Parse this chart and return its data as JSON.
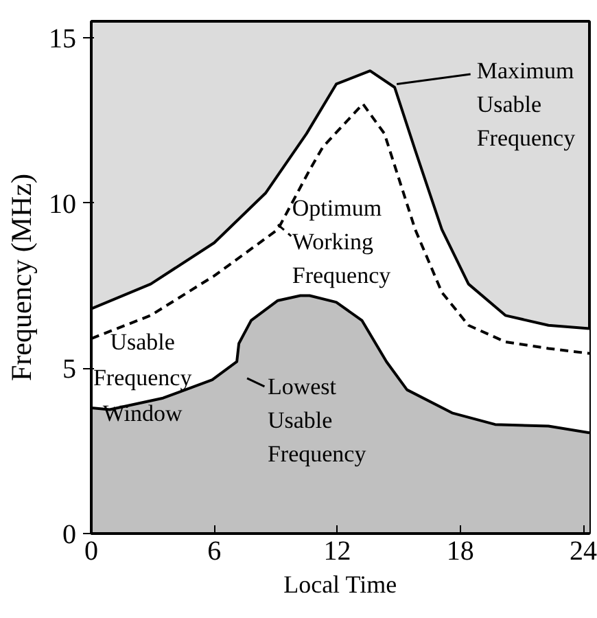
{
  "chart_data": {
    "type": "line",
    "xlabel": "Local Time",
    "ylabel": "Frequency (MHz)",
    "xlim": [
      0,
      24.3
    ],
    "ylim": [
      0,
      15.5
    ],
    "xticks": [
      0,
      6,
      12,
      18,
      24
    ],
    "yticks": [
      0,
      5,
      10,
      15
    ],
    "grid": false,
    "legend": "right",
    "marker": "none",
    "series": [
      {
        "name": "Maximum Usable Frequency",
        "type": "area",
        "color": "#ffffff",
        "line_style": "solid",
        "x": [
          0,
          2.9,
          6,
          8.5,
          10.5,
          11.95,
          13.6,
          14.8,
          15.8,
          17.1,
          18.4,
          20.2,
          22.3,
          24.3
        ],
        "values": [
          6.8,
          7.55,
          8.8,
          10.3,
          12.1,
          13.6,
          14.0,
          13.5,
          11.6,
          9.2,
          7.55,
          6.6,
          6.3,
          6.2
        ]
      },
      {
        "name": "Optimum Working Frequency",
        "color": "#000000",
        "line_style": "dashed",
        "x": [
          0,
          2.9,
          6,
          9.1,
          10.65,
          11.3,
          13.25,
          14.3,
          15.8,
          17.1,
          18.4,
          20.2,
          22.3,
          24.3
        ],
        "values": [
          5.9,
          6.6,
          7.8,
          9.2,
          11.0,
          11.7,
          13.0,
          12.1,
          9.2,
          7.3,
          6.3,
          5.8,
          5.6,
          5.45
        ]
      },
      {
        "name": "Lowest Usable Frequency",
        "type": "area",
        "color": "#c0c0c0",
        "line_style": "solid",
        "x": [
          0,
          0.9,
          3.5,
          5.9,
          7.1,
          7.2,
          7.8,
          9.1,
          10.2,
          10.65,
          11.95,
          13.2,
          14.4,
          15.4,
          17.6,
          19.7,
          22.3,
          24.3
        ],
        "values": [
          3.8,
          3.75,
          4.1,
          4.65,
          5.2,
          5.75,
          6.45,
          7.05,
          7.2,
          7.2,
          7.0,
          6.45,
          5.2,
          4.35,
          3.65,
          3.3,
          3.25,
          3.05
        ]
      }
    ],
    "annotations": [
      "Usable Frequency Window"
    ]
  }
}
